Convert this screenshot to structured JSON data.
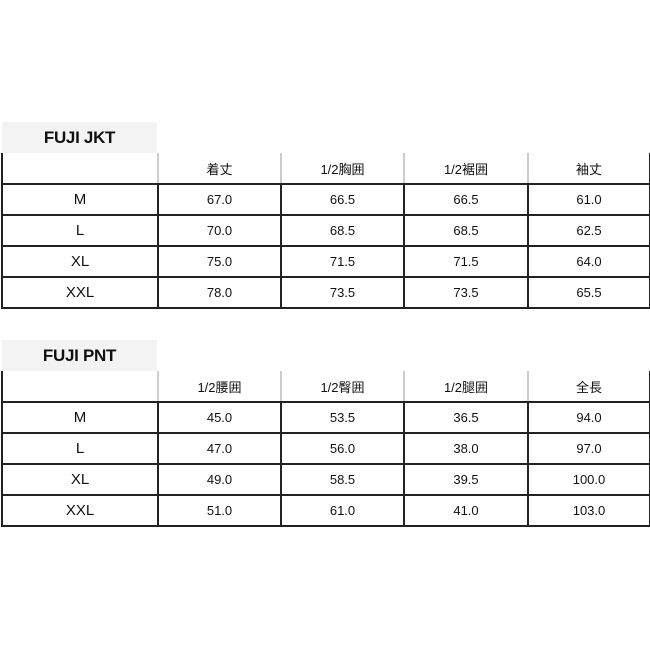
{
  "tables": [
    {
      "title": "FUJI JKT",
      "headers": [
        "",
        "着丈",
        "1/2胸囲",
        "1/2裾囲",
        "袖丈"
      ],
      "rows": [
        {
          "size": "M",
          "values": [
            "67.0",
            "66.5",
            "66.5",
            "61.0"
          ]
        },
        {
          "size": "L",
          "values": [
            "70.0",
            "68.5",
            "68.5",
            "62.5"
          ]
        },
        {
          "size": "XL",
          "values": [
            "75.0",
            "71.5",
            "71.5",
            "64.0"
          ]
        },
        {
          "size": "XXL",
          "values": [
            "78.0",
            "73.5",
            "73.5",
            "65.5"
          ]
        }
      ]
    },
    {
      "title": "FUJI PNT",
      "headers": [
        "",
        "1/2腰囲",
        "1/2臀囲",
        "1/2腿囲",
        "全長"
      ],
      "rows": [
        {
          "size": "M",
          "values": [
            "45.0",
            "53.5",
            "36.5",
            "94.0"
          ]
        },
        {
          "size": "L",
          "values": [
            "47.0",
            "56.0",
            "38.0",
            "97.0"
          ]
        },
        {
          "size": "XL",
          "values": [
            "49.0",
            "58.5",
            "39.5",
            "100.0"
          ]
        },
        {
          "size": "XXL",
          "values": [
            "51.0",
            "61.0",
            "41.0",
            "103.0"
          ]
        }
      ]
    }
  ]
}
